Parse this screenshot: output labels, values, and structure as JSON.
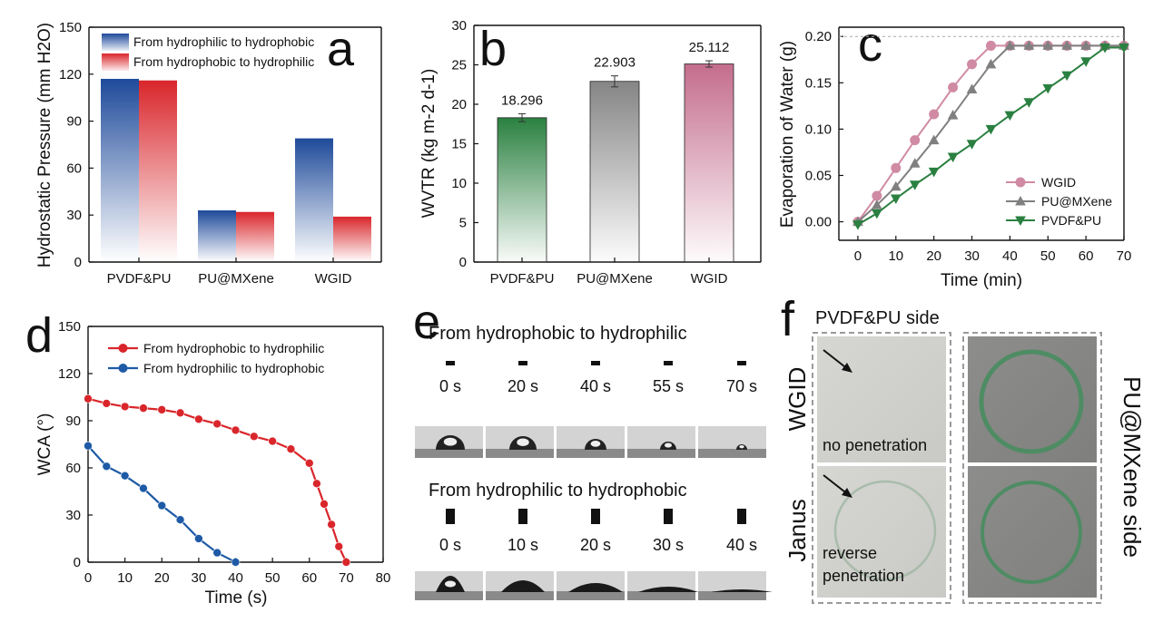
{
  "panels": {
    "a": "a",
    "b": "b",
    "c": "c",
    "d": "d",
    "e": "e",
    "f": "f"
  },
  "chart_data": [
    {
      "id": "a",
      "type": "bar",
      "categories": [
        "PVDF&PU",
        "PU@MXene",
        "WGID"
      ],
      "series": [
        {
          "name": "From hydrophilic to hydrophobic",
          "values": [
            117,
            33,
            79
          ],
          "color": "#1e4a9a"
        },
        {
          "name": "From hydrophobic to hydrophilic",
          "values": [
            116,
            32,
            29
          ],
          "color": "#d9262b"
        }
      ],
      "ylabel": "Hydrostatic Pressure (mm H2O)",
      "ylim": [
        0,
        150
      ],
      "yticks": [
        "0",
        "30",
        "60",
        "90",
        "120",
        "150"
      ],
      "legend": "top-right"
    },
    {
      "id": "b",
      "type": "bar",
      "categories": [
        "PVDF&PU",
        "PU@MXene",
        "WGID"
      ],
      "values": [
        18.296,
        22.903,
        25.112
      ],
      "data_labels": [
        "18.296",
        "22.903",
        "25.112"
      ],
      "errors": [
        0.5,
        0.7,
        0.4
      ],
      "colors": [
        "#2a8040",
        "#858585",
        "#c46d8d"
      ],
      "ylabel": "WVTR (kg m-2 d-1)",
      "ylim": [
        0,
        30
      ],
      "yticks": [
        "0",
        "5",
        "10",
        "15",
        "20",
        "25",
        "30"
      ]
    },
    {
      "id": "c",
      "type": "line",
      "x": [
        0,
        5,
        10,
        15,
        20,
        25,
        30,
        35,
        40,
        45,
        50,
        55,
        60,
        65,
        70
      ],
      "series": [
        {
          "name": "WGID",
          "values": [
            0,
            0.028,
            0.058,
            0.088,
            0.116,
            0.145,
            0.17,
            0.19,
            0.19,
            0.19,
            0.19,
            0.19,
            0.19,
            0.19,
            0.19
          ],
          "color": "#d08aa4",
          "marker": "circle"
        },
        {
          "name": "PU@MXene",
          "values": [
            0,
            0.018,
            0.038,
            0.063,
            0.088,
            0.115,
            0.143,
            0.17,
            0.19,
            0.19,
            0.19,
            0.19,
            0.19,
            0.19,
            0.19
          ],
          "color": "#808080",
          "marker": "triangle-up"
        },
        {
          "name": "PVDF&PU",
          "values": [
            -0.003,
            0.009,
            0.025,
            0.04,
            0.054,
            0.07,
            0.084,
            0.1,
            0.115,
            0.129,
            0.144,
            0.158,
            0.173,
            0.188,
            0.188
          ],
          "color": "#2a8040",
          "marker": "triangle-down"
        }
      ],
      "reference_line": 0.2,
      "xlabel": "Time (min)",
      "ylabel": "Evaporation of Water (g)",
      "xlim": [
        -5,
        70
      ],
      "ylim": [
        -0.02,
        0.21
      ],
      "xticks": [
        "0",
        "10",
        "20",
        "30",
        "40",
        "50",
        "60",
        "70"
      ],
      "yticks": [
        "0.00",
        "0.05",
        "0.10",
        "0.15",
        "0.20"
      ],
      "legend": "bottom-right"
    },
    {
      "id": "d",
      "type": "line",
      "series": [
        {
          "name": "From hydrophobic to hydrophilic",
          "x": [
            0,
            5,
            10,
            15,
            20,
            25,
            30,
            35,
            40,
            45,
            50,
            55,
            60,
            62,
            64,
            66,
            68,
            70
          ],
          "values": [
            104,
            101,
            99,
            98,
            97,
            95,
            91,
            88,
            84,
            80,
            77,
            72,
            63,
            50,
            37,
            24,
            10,
            0
          ],
          "color": "#d9262b"
        },
        {
          "name": "From hydrophilic to hydrophobic",
          "x": [
            0,
            5,
            10,
            15,
            20,
            25,
            30,
            35,
            40
          ],
          "values": [
            74,
            61,
            55,
            47,
            36,
            27,
            15,
            6,
            0
          ],
          "color": "#1e5aa6"
        }
      ],
      "xlabel": "Time (s)",
      "ylabel": "WCA (°)",
      "xlim": [
        0,
        80
      ],
      "ylim": [
        0,
        150
      ],
      "xticks": [
        "0",
        "10",
        "20",
        "30",
        "40",
        "50",
        "60",
        "70",
        "80"
      ],
      "yticks": [
        "0",
        "30",
        "60",
        "90",
        "120",
        "150"
      ],
      "legend": "top-left"
    }
  ],
  "panel_e": {
    "row1_title": "From hydrophobic to hydrophilic",
    "row1_times": [
      "0 s",
      "20 s",
      "40 s",
      "55 s",
      "70 s"
    ],
    "row2_title": "From hydrophilic to hydrophobic",
    "row2_times": [
      "0 s",
      "10 s",
      "20 s",
      "30 s",
      "40 s"
    ]
  },
  "panel_f": {
    "top_title": "PVDF&PU side",
    "left_top": "WGID",
    "left_bottom": "Janus",
    "right": "PU@MXene side",
    "caption_top": "no penetration",
    "caption_bottom_1": "reverse",
    "caption_bottom_2": "penetration"
  }
}
